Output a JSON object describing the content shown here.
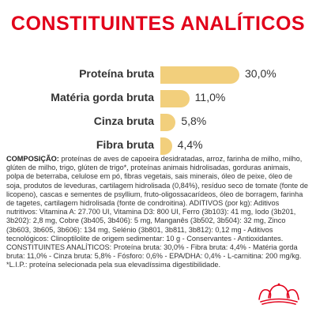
{
  "title": "CONSTITUINTES ANALÍTICOS",
  "chart_data": {
    "type": "bar",
    "categories": [
      "Proteína bruta",
      "Matéria gorda bruta",
      "Cinza bruta",
      "Fibra bruta"
    ],
    "values": [
      30.0,
      11.0,
      5.8,
      4.4
    ],
    "value_labels": [
      "30,0%",
      "11,0%",
      "5,8%",
      "4,4%"
    ],
    "xlim": [
      0,
      30.0
    ],
    "bar_color": "#f2cf7c",
    "orientation": "horizontal"
  },
  "composition": {
    "heading": "COMPOSIÇÃO:",
    "body": " proteínas de aves de capoeira desidratadas, arroz, farinha de milho, milho, glúten de milho, trigo, glúten de trigo*, proteínas animais hidrolisadas, gorduras animais, polpa de beterraba, celulose em pó, fibras vegetais, sais minerais, óleo de peixe, óleo de soja, produtos de leveduras, cartilagem hidrolisada (0,84%), resíduo seco de tomate (fonte de licopeno), cascas e sementes de psyllium, fruto-oligossacarídeos, óleo de borragem, farinha de tagetes, cartilagem hidrolisada (fonte de condroitina). ADITIVOS (por kg): Aditivos nutritivos: Vitamina A: 27.700 UI, Vitamina D3: 800 UI, Ferro (3b103): 41 mg, Iodo (3b201, 3b202): 2,8 mg, Cobre (3b405, 3b406): 5 mg, Manganês (3b502, 3b504): 32 mg, Zinco (3b603, 3b605, 3b606): 134 mg, Selénio (3b801, 3b811, 3b812): 0,12 mg - Aditivos tecnológicos: Clinoptilolite de origem sedimentar: 10 g - Conservantes - Antioxidantes. CONSTITUINTES ANALÍTICOS: Proteína bruta: 30,0% - Fibra bruta: 4,4% - Matéria gorda bruta: 11,0% - Cinza bruta: 5,8% - Fósforo: 0,6% - EPA/DHA: 0,4% - L-carnitina: 200 mg/kg. *L.I.P.: proteína selecionada pela sua elevadíssima digestibilidade."
  },
  "brand": {
    "logo_icon": "royal-canin-crown-icon",
    "logo_color": "#e2001a"
  }
}
